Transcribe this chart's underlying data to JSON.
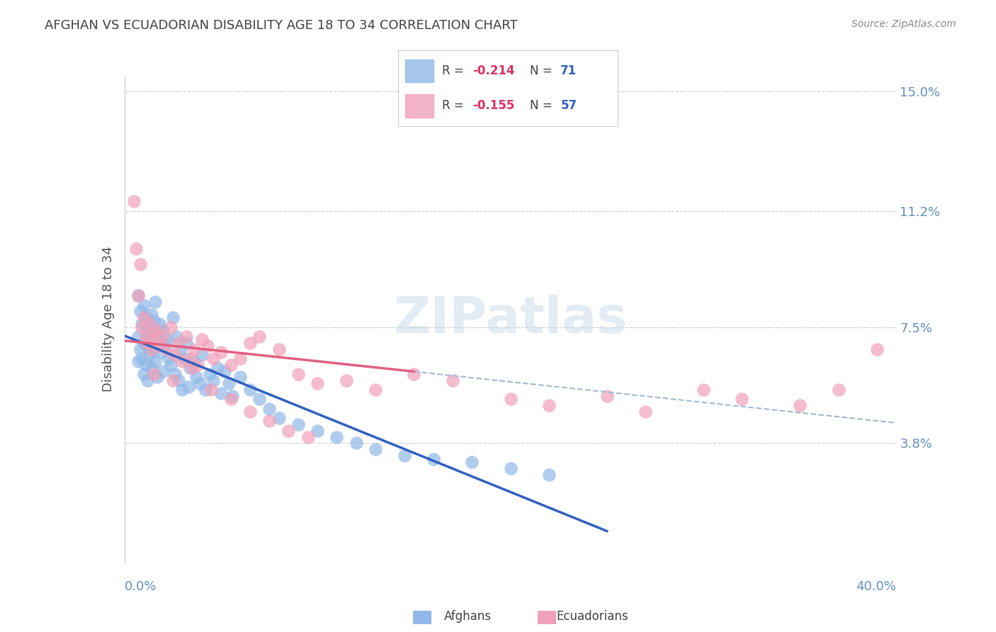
{
  "title": "AFGHAN VS ECUADORIAN DISABILITY AGE 18 TO 34 CORRELATION CHART",
  "source": "Source: ZipAtlas.com",
  "ylabel": "Disability Age 18 to 34",
  "x_min": 0.0,
  "x_max": 0.4,
  "y_min": 0.0,
  "y_max": 0.155,
  "ytick_labels": [
    "3.8%",
    "7.5%",
    "11.2%",
    "15.0%"
  ],
  "ytick_values": [
    0.038,
    0.075,
    0.112,
    0.15
  ],
  "afghan_R": "-0.214",
  "afghan_N": "71",
  "ecuadorian_R": "-0.155",
  "ecuadorian_N": "57",
  "afghan_color": "#90b8e8",
  "ecuadorian_color": "#f0a0b8",
  "afghan_line_color": "#3060c0",
  "ecuadorian_line_color": "#e06080",
  "dashed_line_color": "#a0b8d0",
  "watermark_color": "#c8d8e8",
  "title_color": "#404040",
  "axis_label_color": "#6090c0",
  "legend_R_color": "#e03060",
  "legend_N_color": "#3060c0",
  "afghans_x": [
    0.007,
    0.007,
    0.007,
    0.008,
    0.008,
    0.009,
    0.009,
    0.01,
    0.01,
    0.01,
    0.011,
    0.011,
    0.011,
    0.012,
    0.012,
    0.012,
    0.013,
    0.013,
    0.014,
    0.014,
    0.015,
    0.015,
    0.016,
    0.016,
    0.017,
    0.017,
    0.018,
    0.019,
    0.02,
    0.02,
    0.021,
    0.022,
    0.023,
    0.024,
    0.025,
    0.026,
    0.027,
    0.028,
    0.029,
    0.03,
    0.031,
    0.032,
    0.033,
    0.034,
    0.036,
    0.037,
    0.039,
    0.04,
    0.042,
    0.044,
    0.046,
    0.048,
    0.05,
    0.052,
    0.054,
    0.056,
    0.06,
    0.065,
    0.07,
    0.075,
    0.08,
    0.09,
    0.1,
    0.11,
    0.12,
    0.13,
    0.145,
    0.16,
    0.18,
    0.2,
    0.22
  ],
  "afghans_y": [
    0.085,
    0.072,
    0.064,
    0.08,
    0.068,
    0.076,
    0.065,
    0.082,
    0.07,
    0.06,
    0.078,
    0.071,
    0.063,
    0.075,
    0.069,
    0.058,
    0.073,
    0.066,
    0.079,
    0.062,
    0.077,
    0.068,
    0.083,
    0.064,
    0.072,
    0.059,
    0.076,
    0.067,
    0.074,
    0.061,
    0.069,
    0.071,
    0.065,
    0.063,
    0.078,
    0.06,
    0.072,
    0.058,
    0.068,
    0.055,
    0.065,
    0.07,
    0.056,
    0.062,
    0.064,
    0.059,
    0.057,
    0.066,
    0.055,
    0.06,
    0.058,
    0.062,
    0.054,
    0.061,
    0.057,
    0.053,
    0.059,
    0.055,
    0.052,
    0.049,
    0.046,
    0.044,
    0.042,
    0.04,
    0.038,
    0.036,
    0.034,
    0.033,
    0.032,
    0.03,
    0.028
  ],
  "ecuadorians_x": [
    0.005,
    0.006,
    0.007,
    0.008,
    0.009,
    0.01,
    0.011,
    0.012,
    0.013,
    0.014,
    0.015,
    0.016,
    0.017,
    0.018,
    0.02,
    0.022,
    0.024,
    0.026,
    0.028,
    0.03,
    0.032,
    0.034,
    0.036,
    0.038,
    0.04,
    0.043,
    0.046,
    0.05,
    0.055,
    0.06,
    0.065,
    0.07,
    0.08,
    0.09,
    0.1,
    0.115,
    0.13,
    0.15,
    0.17,
    0.2,
    0.22,
    0.25,
    0.27,
    0.3,
    0.32,
    0.35,
    0.37,
    0.39,
    0.015,
    0.025,
    0.035,
    0.045,
    0.055,
    0.065,
    0.075,
    0.085,
    0.095
  ],
  "ecuadorians_y": [
    0.115,
    0.1,
    0.085,
    0.095,
    0.075,
    0.078,
    0.072,
    0.07,
    0.076,
    0.068,
    0.073,
    0.071,
    0.074,
    0.069,
    0.072,
    0.068,
    0.075,
    0.066,
    0.07,
    0.064,
    0.072,
    0.065,
    0.068,
    0.063,
    0.071,
    0.069,
    0.065,
    0.067,
    0.063,
    0.065,
    0.07,
    0.072,
    0.068,
    0.06,
    0.057,
    0.058,
    0.055,
    0.06,
    0.058,
    0.052,
    0.05,
    0.053,
    0.048,
    0.055,
    0.052,
    0.05,
    0.055,
    0.068,
    0.06,
    0.058,
    0.062,
    0.055,
    0.052,
    0.048,
    0.045,
    0.042,
    0.04
  ]
}
